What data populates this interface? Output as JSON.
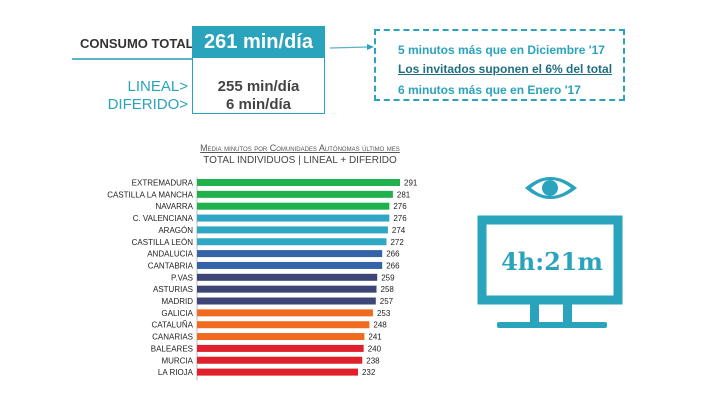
{
  "summary": {
    "total_label": "CONSUMO TOTAL",
    "total_value": "261 min/día",
    "lineal_label": "LINEAL>",
    "lineal_value": "255 min/día",
    "diferido_label": "DIFERIDO>",
    "diferido_value": "6 min/día"
  },
  "notes": [
    "5 minutos más que en Diciembre '17",
    "Los invitados suponen el 6% del total",
    "6 minutos más que en Enero '17"
  ],
  "tv": {
    "value": "4h:21m",
    "icon": "eye-icon",
    "color": "#2aa3bd"
  },
  "chart_data": {
    "type": "bar",
    "orientation": "horizontal",
    "title": "Media minutos por Comunidades Autónomas último mes",
    "subtitle": "TOTAL INDIVIDUOS  | LINEAL + DIFERIDO",
    "categories": [
      "EXTREMADURA",
      "CASTILLA LA MANCHA",
      "NAVARRA",
      "C. VALENCIANA",
      "ARAGÓN",
      "CASTILLA LEÓN",
      "ANDALUCIA",
      "CANTABRIA",
      "P.VAS",
      "ASTURIAS",
      "MADRID",
      "GALICIA",
      "CATALUÑA",
      "CANARIAS",
      "BALEARES",
      "MURCIA",
      "LA RIOJA"
    ],
    "values": [
      291,
      281,
      276,
      276,
      274,
      272,
      266,
      266,
      259,
      258,
      257,
      253,
      248,
      241,
      240,
      238,
      232
    ],
    "colors": [
      "#1fb14c",
      "#1fb14c",
      "#1fb14c",
      "#2fa6c4",
      "#2fa6c4",
      "#2fa6c4",
      "#3463a8",
      "#3463a8",
      "#3d4677",
      "#3d4677",
      "#3d4677",
      "#f06a20",
      "#f06a20",
      "#f06a20",
      "#e0202b",
      "#e0202b",
      "#e0202b"
    ],
    "grid": false,
    "data_labels": true
  }
}
